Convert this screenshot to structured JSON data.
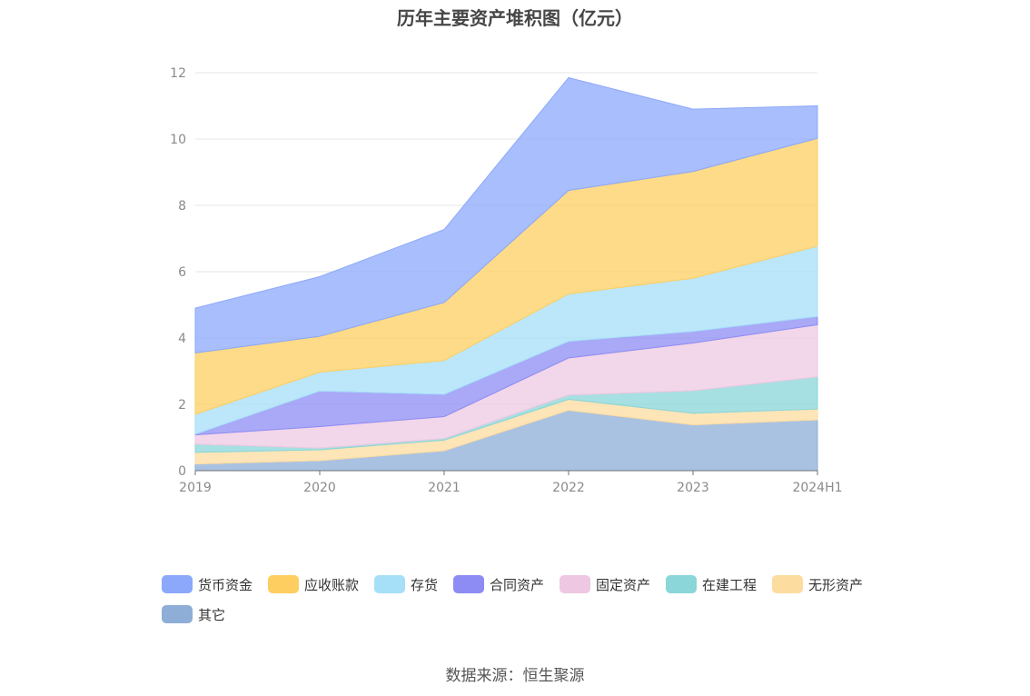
{
  "title": "历年主要资产堆积图（亿元）",
  "source": "数据来源：恒生聚源",
  "chart_data": {
    "type": "area",
    "stacked": true,
    "categories": [
      "2019",
      "2020",
      "2021",
      "2022",
      "2023",
      "2024H1"
    ],
    "ylim": [
      0,
      12
    ],
    "yticks": [
      0,
      2,
      4,
      6,
      8,
      10,
      12
    ],
    "grid": true,
    "legend": "bottom",
    "series": [
      {
        "name": "其它",
        "color": "#8eaed8",
        "values": [
          0.2,
          0.3,
          0.6,
          1.82,
          1.38,
          1.53
        ]
      },
      {
        "name": "无形资产",
        "color": "#fddca0",
        "values": [
          0.35,
          0.33,
          0.32,
          0.33,
          0.35,
          0.33
        ]
      },
      {
        "name": "在建工程",
        "color": "#8ad6d8",
        "values": [
          0.25,
          0.05,
          0.05,
          0.13,
          0.68,
          0.97
        ]
      },
      {
        "name": "固定资产",
        "color": "#eec8e2",
        "values": [
          0.28,
          0.65,
          0.66,
          1.12,
          1.44,
          1.57
        ]
      },
      {
        "name": "合同资产",
        "color": "#8c8cf4",
        "values": [
          0.02,
          1.07,
          0.67,
          0.5,
          0.35,
          0.25
        ]
      },
      {
        "name": "存货",
        "color": "#a6dff8",
        "values": [
          0.6,
          0.57,
          1.02,
          1.43,
          1.6,
          2.12
        ]
      },
      {
        "name": "应收账款",
        "color": "#fecf60",
        "values": [
          1.85,
          1.08,
          1.75,
          3.12,
          3.22,
          3.25
        ]
      },
      {
        "name": "货币资金",
        "color": "#8ca8fb",
        "values": [
          1.35,
          1.8,
          2.2,
          3.4,
          1.88,
          0.98
        ]
      }
    ]
  },
  "legend_order": [
    "货币资金",
    "应收账款",
    "存货",
    "合同资产",
    "固定资产",
    "在建工程",
    "无形资产",
    "其它"
  ]
}
